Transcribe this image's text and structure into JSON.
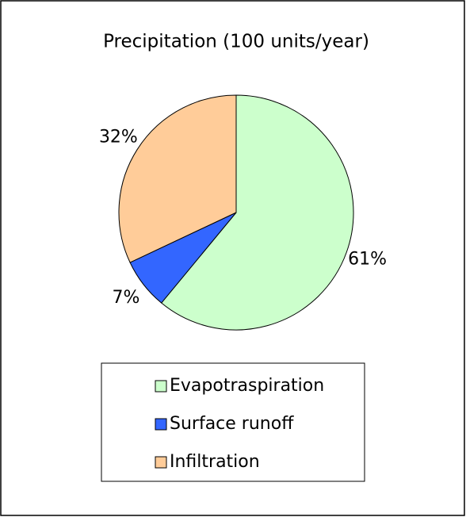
{
  "chart_data": {
    "type": "pie",
    "title": "Precipitation (100 units/year)",
    "categories": [
      "Evapotraspiration",
      "Surface runoff",
      "Infiltration"
    ],
    "values": [
      61,
      7,
      32
    ],
    "value_labels": [
      "61%",
      "7%",
      "32%"
    ],
    "colors": [
      "#ccffcc",
      "#3366ff",
      "#ffcc99"
    ],
    "legend": "bottom"
  }
}
